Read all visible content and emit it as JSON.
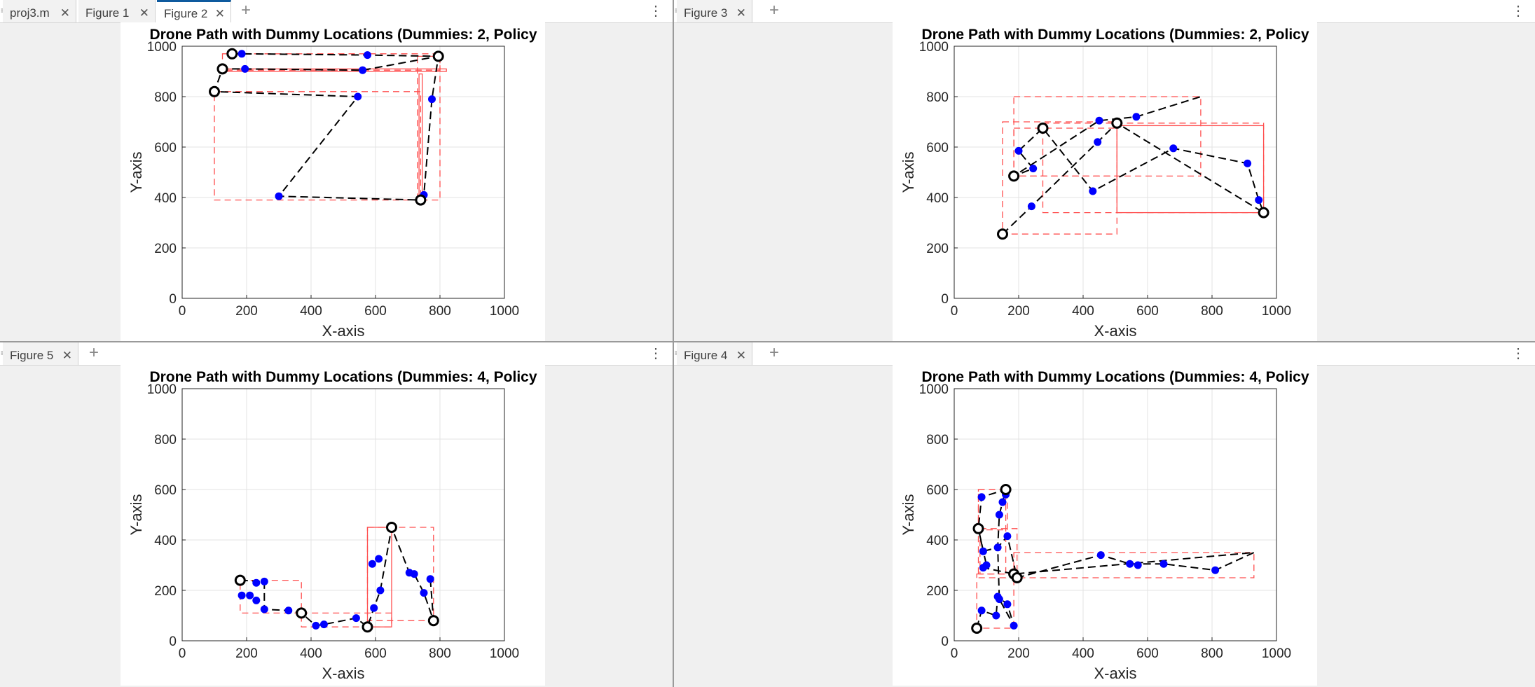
{
  "panes": [
    {
      "id": "top-left",
      "tabs": [
        {
          "label": "proj3.m",
          "active": false
        },
        {
          "label": "Figure 1",
          "active": false
        },
        {
          "label": "Figure 2",
          "active": true
        }
      ],
      "chart": {
        "title": "Drone Path with Dummy Locations  (Dummies: 2, Policy",
        "xlabel": "X-axis",
        "ylabel": "Y-axis",
        "xlim": [
          0,
          1000
        ],
        "ylim": [
          0,
          1000
        ],
        "ticks": [
          "0",
          "200",
          "400",
          "600",
          "800",
          "1000"
        ]
      }
    },
    {
      "id": "top-right",
      "tabs": [
        {
          "label": "Figure 3",
          "active": false
        }
      ],
      "chart": {
        "title": "Drone Path with Dummy Locations  (Dummies: 2, Policy",
        "xlabel": "X-axis",
        "ylabel": "Y-axis",
        "xlim": [
          0,
          1000
        ],
        "ylim": [
          0,
          1000
        ],
        "ticks": [
          "0",
          "200",
          "400",
          "600",
          "800",
          "1000"
        ]
      }
    },
    {
      "id": "bottom-left",
      "tabs": [
        {
          "label": "Figure 5",
          "active": false
        }
      ],
      "chart": {
        "title": "Drone Path with Dummy Locations  (Dummies: 4, Policy",
        "xlabel": "X-axis",
        "ylabel": "Y-axis",
        "xlim": [
          0,
          1000
        ],
        "ylim": [
          0,
          1000
        ],
        "ticks": [
          "0",
          "200",
          "400",
          "600",
          "800",
          "1000"
        ]
      }
    },
    {
      "id": "bottom-right",
      "tabs": [
        {
          "label": "Figure 4",
          "active": false
        }
      ],
      "chart": {
        "title": "Drone Path with Dummy Locations  (Dummies: 4, Policy",
        "xlabel": "X-axis",
        "ylabel": "Y-axis",
        "xlim": [
          0,
          1000
        ],
        "ylim": [
          0,
          1000
        ],
        "ticks": [
          "0",
          "200",
          "400",
          "600",
          "800",
          "1000"
        ]
      }
    }
  ],
  "icons": {
    "close": "close-icon",
    "add": "plus-icon",
    "menu": "kebab-menu-icon"
  },
  "chart_data": [
    {
      "type": "scatter",
      "title": "Drone Path with Dummy Locations  (Dummies: 2, Policy",
      "xlabel": "X-axis",
      "ylabel": "Y-axis",
      "xlim": [
        0,
        1000
      ],
      "ylim": [
        0,
        1000
      ],
      "grid": true,
      "colors": {
        "path": "#000000",
        "dummy": "#0000ff",
        "box": "#ff4d4d"
      },
      "real": [
        [
          155,
          970
        ],
        [
          125,
          910
        ],
        [
          100,
          820
        ],
        [
          740,
          390
        ],
        [
          795,
          960
        ]
      ],
      "dummies": [
        [
          185,
          970
        ],
        [
          575,
          965
        ],
        [
          195,
          910
        ],
        [
          560,
          905
        ],
        [
          545,
          800
        ],
        [
          300,
          405
        ],
        [
          750,
          410
        ],
        [
          775,
          790
        ]
      ],
      "path": [
        [
          155,
          970
        ],
        [
          185,
          970
        ],
        [
          575,
          965
        ],
        [
          795,
          960
        ],
        [
          775,
          790
        ],
        [
          750,
          410
        ],
        [
          740,
          390
        ],
        [
          300,
          405
        ],
        [
          545,
          800
        ],
        [
          100,
          820
        ],
        [
          125,
          910
        ],
        [
          195,
          910
        ],
        [
          560,
          905
        ],
        [
          795,
          960
        ]
      ],
      "boxes": [
        {
          "x": [
            100,
            740
          ],
          "y": [
            390,
            820
          ],
          "style": "dashed"
        },
        {
          "x": [
            125,
            800
          ],
          "y": [
            905,
            970
          ],
          "style": "dashed"
        },
        {
          "x": [
            730,
            800
          ],
          "y": [
            390,
            960
          ],
          "style": "dashed"
        },
        {
          "x": [
            125,
            820
          ],
          "y": [
            900,
            910
          ],
          "style": "solid"
        },
        {
          "x": [
            735,
            745
          ],
          "y": [
            400,
            890
          ],
          "style": "solid"
        }
      ]
    },
    {
      "type": "scatter",
      "title": "Drone Path with Dummy Locations  (Dummies: 2, Policy",
      "xlabel": "X-axis",
      "ylabel": "Y-axis",
      "xlim": [
        0,
        1000
      ],
      "ylim": [
        0,
        1000
      ],
      "grid": true,
      "colors": {
        "path": "#000000",
        "dummy": "#0000ff",
        "box": "#ff4d4d"
      },
      "real": [
        [
          150,
          255
        ],
        [
          185,
          485
        ],
        [
          275,
          675
        ],
        [
          505,
          695
        ],
        [
          960,
          340
        ]
      ],
      "dummies": [
        [
          240,
          365
        ],
        [
          445,
          620
        ],
        [
          200,
          585
        ],
        [
          245,
          515
        ],
        [
          450,
          705
        ],
        [
          565,
          720
        ],
        [
          430,
          425
        ],
        [
          680,
          595
        ],
        [
          910,
          535
        ],
        [
          945,
          390
        ]
      ],
      "path": [
        [
          150,
          255
        ],
        [
          240,
          365
        ],
        [
          445,
          620
        ],
        [
          505,
          695
        ],
        [
          960,
          340
        ],
        [
          945,
          390
        ],
        [
          910,
          535
        ],
        [
          680,
          595
        ],
        [
          430,
          425
        ],
        [
          275,
          675
        ],
        [
          200,
          585
        ],
        [
          245,
          515
        ],
        [
          185,
          485
        ],
        [
          450,
          705
        ],
        [
          565,
          720
        ],
        [
          765,
          800
        ]
      ],
      "boxes": [
        {
          "x": [
            150,
            505
          ],
          "y": [
            255,
            700
          ],
          "style": "dashed"
        },
        {
          "x": [
            275,
            960
          ],
          "y": [
            340,
            695
          ],
          "style": "dashed"
        },
        {
          "x": [
            185,
            765
          ],
          "y": [
            485,
            800
          ],
          "style": "dashed"
        },
        {
          "x": [
            505,
            960
          ],
          "y": [
            340,
            685
          ],
          "style": "solid"
        },
        {
          "x": [
            185,
            505
          ],
          "y": [
            485,
            675
          ],
          "style": "dashed"
        }
      ]
    },
    {
      "type": "scatter",
      "title": "Drone Path with Dummy Locations  (Dummies: 4, Policy",
      "xlabel": "X-axis",
      "ylabel": "Y-axis",
      "xlim": [
        0,
        1000
      ],
      "ylim": [
        0,
        1000
      ],
      "grid": true,
      "colors": {
        "path": "#000000",
        "dummy": "#0000ff",
        "box": "#ff4d4d"
      },
      "real": [
        [
          180,
          240
        ],
        [
          370,
          110
        ],
        [
          575,
          55
        ],
        [
          650,
          450
        ],
        [
          780,
          80
        ]
      ],
      "dummies": [
        [
          185,
          180
        ],
        [
          210,
          180
        ],
        [
          230,
          160
        ],
        [
          230,
          230
        ],
        [
          255,
          235
        ],
        [
          255,
          125
        ],
        [
          330,
          120
        ],
        [
          415,
          60
        ],
        [
          440,
          65
        ],
        [
          540,
          90
        ],
        [
          595,
          130
        ],
        [
          615,
          200
        ],
        [
          590,
          305
        ],
        [
          610,
          325
        ],
        [
          705,
          270
        ],
        [
          720,
          265
        ],
        [
          750,
          190
        ],
        [
          770,
          245
        ]
      ],
      "path": [
        [
          180,
          240
        ],
        [
          255,
          235
        ],
        [
          255,
          125
        ],
        [
          330,
          120
        ],
        [
          370,
          110
        ],
        [
          415,
          60
        ],
        [
          440,
          65
        ],
        [
          540,
          90
        ],
        [
          575,
          55
        ],
        [
          595,
          130
        ],
        [
          615,
          200
        ],
        [
          650,
          450
        ],
        [
          705,
          270
        ],
        [
          720,
          265
        ],
        [
          750,
          190
        ],
        [
          780,
          80
        ],
        [
          770,
          245
        ]
      ],
      "boxes": [
        {
          "x": [
            180,
            370
          ],
          "y": [
            110,
            240
          ],
          "style": "dashed"
        },
        {
          "x": [
            370,
            650
          ],
          "y": [
            55,
            110
          ],
          "style": "dashed"
        },
        {
          "x": [
            575,
            780
          ],
          "y": [
            80,
            450
          ],
          "style": "dashed"
        },
        {
          "x": [
            575,
            650
          ],
          "y": [
            55,
            450
          ],
          "style": "solid"
        }
      ]
    },
    {
      "type": "scatter",
      "title": "Drone Path with Dummy Locations  (Dummies: 4, Policy",
      "xlabel": "X-axis",
      "ylabel": "Y-axis",
      "xlim": [
        0,
        1000
      ],
      "ylim": [
        0,
        1000
      ],
      "grid": true,
      "colors": {
        "path": "#000000",
        "dummy": "#0000ff",
        "box": "#ff4d4d"
      },
      "real": [
        [
          70,
          50
        ],
        [
          75,
          445
        ],
        [
          160,
          600
        ],
        [
          185,
          265
        ],
        [
          195,
          250
        ]
      ],
      "dummies": [
        [
          85,
          570
        ],
        [
          150,
          550
        ],
        [
          160,
          580
        ],
        [
          140,
          500
        ],
        [
          90,
          355
        ],
        [
          135,
          370
        ],
        [
          165,
          415
        ],
        [
          90,
          290
        ],
        [
          100,
          300
        ],
        [
          85,
          120
        ],
        [
          130,
          100
        ],
        [
          135,
          175
        ],
        [
          140,
          165
        ],
        [
          165,
          145
        ],
        [
          185,
          60
        ],
        [
          455,
          340
        ],
        [
          545,
          305
        ],
        [
          570,
          300
        ],
        [
          650,
          305
        ],
        [
          810,
          280
        ]
      ],
      "path": [
        [
          70,
          50
        ],
        [
          85,
          120
        ],
        [
          130,
          100
        ],
        [
          135,
          175
        ],
        [
          165,
          145
        ],
        [
          185,
          60
        ],
        [
          140,
          165
        ],
        [
          135,
          370
        ],
        [
          165,
          415
        ],
        [
          195,
          250
        ],
        [
          455,
          340
        ],
        [
          545,
          305
        ],
        [
          650,
          305
        ],
        [
          810,
          280
        ],
        [
          930,
          350
        ],
        [
          185,
          265
        ],
        [
          90,
          290
        ],
        [
          100,
          300
        ],
        [
          75,
          445
        ],
        [
          90,
          355
        ],
        [
          135,
          370
        ],
        [
          140,
          500
        ],
        [
          150,
          550
        ],
        [
          160,
          600
        ],
        [
          85,
          570
        ],
        [
          75,
          445
        ]
      ],
      "boxes": [
        {
          "x": [
            70,
            185
          ],
          "y": [
            50,
            265
          ],
          "style": "dashed"
        },
        {
          "x": [
            75,
            160
          ],
          "y": [
            250,
            600
          ],
          "style": "dashed"
        },
        {
          "x": [
            185,
            930
          ],
          "y": [
            250,
            350
          ],
          "style": "dashed"
        },
        {
          "x": [
            75,
            165
          ],
          "y": [
            440,
            600
          ],
          "style": "dashed"
        },
        {
          "x": [
            80,
            195
          ],
          "y": [
            265,
            445
          ],
          "style": "dashed"
        }
      ]
    }
  ]
}
